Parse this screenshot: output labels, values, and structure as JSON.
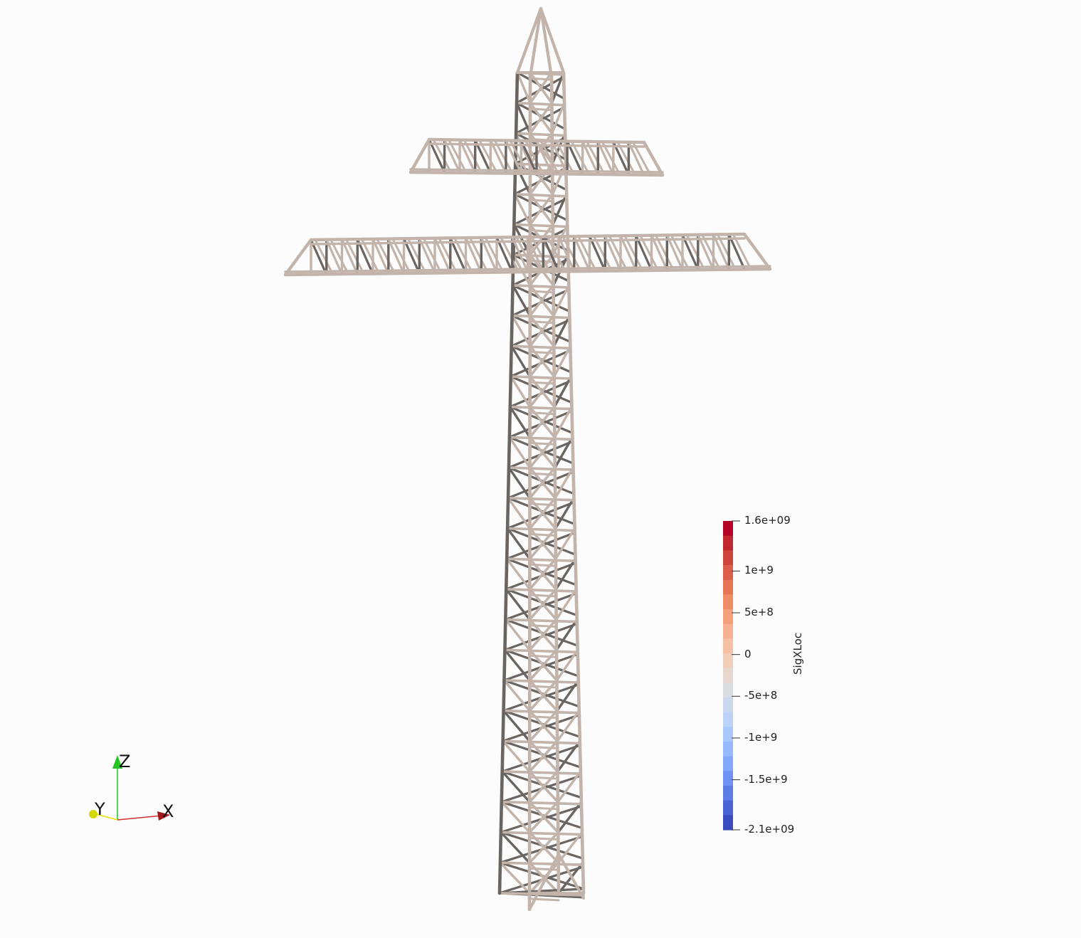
{
  "colorbar": {
    "title": "SigXLoc",
    "ticks": [
      {
        "label": "1.6e+09",
        "value": 1600000000.0
      },
      {
        "label": "1e+9",
        "value": 1000000000.0
      },
      {
        "label": "5e+8",
        "value": 500000000.0
      },
      {
        "label": "0",
        "value": 0
      },
      {
        "label": "-5e+8",
        "value": -500000000.0
      },
      {
        "label": "-1e+9",
        "value": -1000000000.0
      },
      {
        "label": "-1.5e+9",
        "value": -1500000000.0
      },
      {
        "label": "-2.1e+09",
        "value": -2100000000.0
      }
    ],
    "range": [
      -2100000000.0,
      1600000000.0
    ],
    "colors": [
      "#3b4cc0",
      "#4a63d3",
      "#5d7ce6",
      "#7093f3",
      "#84a7fc",
      "#98b9ff",
      "#aac7fd",
      "#bcd2f7",
      "#cbd8ee",
      "#d9dce1",
      "#e6d7cf",
      "#f1cdba",
      "#f5c0a4",
      "#f6b092",
      "#f4a07c",
      "#ef8c68",
      "#e67556",
      "#dc5d4a",
      "#cf453c",
      "#c0282f",
      "#b40426"
    ]
  },
  "orientation_axes": {
    "x": "X",
    "y": "Y",
    "z": "Z"
  },
  "colors": {
    "background": "#fbfcfb",
    "member_light": "#c2b4aa",
    "member_dark": "#6b6562",
    "axis_x": "#d32f2f",
    "axis_y": "#e8e000",
    "axis_z": "#22c422"
  }
}
